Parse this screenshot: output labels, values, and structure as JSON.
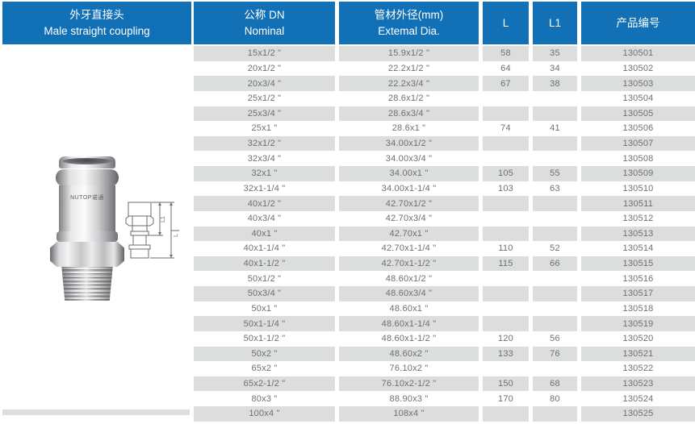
{
  "product": {
    "title_zh": "外牙直接头",
    "title_en": "Male straight coupling",
    "brand_mark": "NUTOP诺通"
  },
  "drawing": {
    "label_l": "L",
    "label_l1": "L1"
  },
  "colors": {
    "header_blue": "#1271b6",
    "row_stripe_gray": "#dcdddd",
    "cell_text": "#6e6f72"
  },
  "table": {
    "headers": {
      "nominal_zh": "公称 DN",
      "nominal_en": "Nominal",
      "external_zh": "管材外径(mm)",
      "external_en": "Extemal Dia.",
      "l": "L",
      "l1": "L1",
      "code": "产品编号"
    },
    "rows": [
      [
        "15x1/2 \"",
        "15.9x1/2 \"",
        "58",
        "35",
        "130501"
      ],
      [
        "20x1/2 \"",
        "22.2x1/2 \"",
        "64",
        "34",
        "130502"
      ],
      [
        "20x3/4 \"",
        "22.2x3/4 \"",
        "67",
        "38",
        "130503"
      ],
      [
        "25x1/2 \"",
        "28.6x1/2 \"",
        "",
        "",
        "130504"
      ],
      [
        "25x3/4 \"",
        "28.6x3/4 \"",
        "",
        "",
        "130505"
      ],
      [
        "25x1 \"",
        "28.6x1 \"",
        "74",
        "41",
        "130506"
      ],
      [
        "32x1/2 \"",
        "34.00x1/2 \"",
        "",
        "",
        "130507"
      ],
      [
        "32x3/4 \"",
        "34.00x3/4 \"",
        "",
        "",
        "130508"
      ],
      [
        "32x1 \"",
        "34.00x1 \"",
        "105",
        "55",
        "130509"
      ],
      [
        "32x1-1/4 \"",
        "34.00x1-1/4 \"",
        "103",
        "63",
        "130510"
      ],
      [
        "40x1/2 \"",
        "42.70x1/2 \"",
        "",
        "",
        "130511"
      ],
      [
        "40x3/4 \"",
        "42.70x3/4 \"",
        "",
        "",
        "130512"
      ],
      [
        "40x1 \"",
        "42.70x1 \"",
        "",
        "",
        "130513"
      ],
      [
        "40x1-1/4 \"",
        "42.70x1-1/4 \"",
        "110",
        "52",
        "130514"
      ],
      [
        "40x1-1/2 \"",
        "42.70x1-1/2 \"",
        "115",
        "66",
        "130515"
      ],
      [
        "50x1/2 \"",
        "48.60x1/2 \"",
        "",
        "",
        "130516"
      ],
      [
        "50x3/4 \"",
        "48.60x3/4 \"",
        "",
        "",
        "130517"
      ],
      [
        "50x1 \"",
        "48.60x1 \"",
        "",
        "",
        "130518"
      ],
      [
        "50x1-1/4 \"",
        "48.60x1-1/4 \"",
        "",
        "",
        "130519"
      ],
      [
        "50x1-1/2 \"",
        "48.60x1-1/2 \"",
        "120",
        "56",
        "130520"
      ],
      [
        "50x2 \"",
        "48.60x2 \"",
        "133",
        "76",
        "130521"
      ],
      [
        "65x2 \"",
        "76.10x2 \"",
        "",
        "",
        "130522"
      ],
      [
        "65x2-1/2 \"",
        "76.10x2-1/2 \"",
        "150",
        "68",
        "130523"
      ],
      [
        "80x3 \"",
        "88.90x3 \"",
        "170",
        "80",
        "130524"
      ],
      [
        "100x4 \"",
        "108x4 \"",
        "",
        "",
        "130525"
      ]
    ]
  }
}
